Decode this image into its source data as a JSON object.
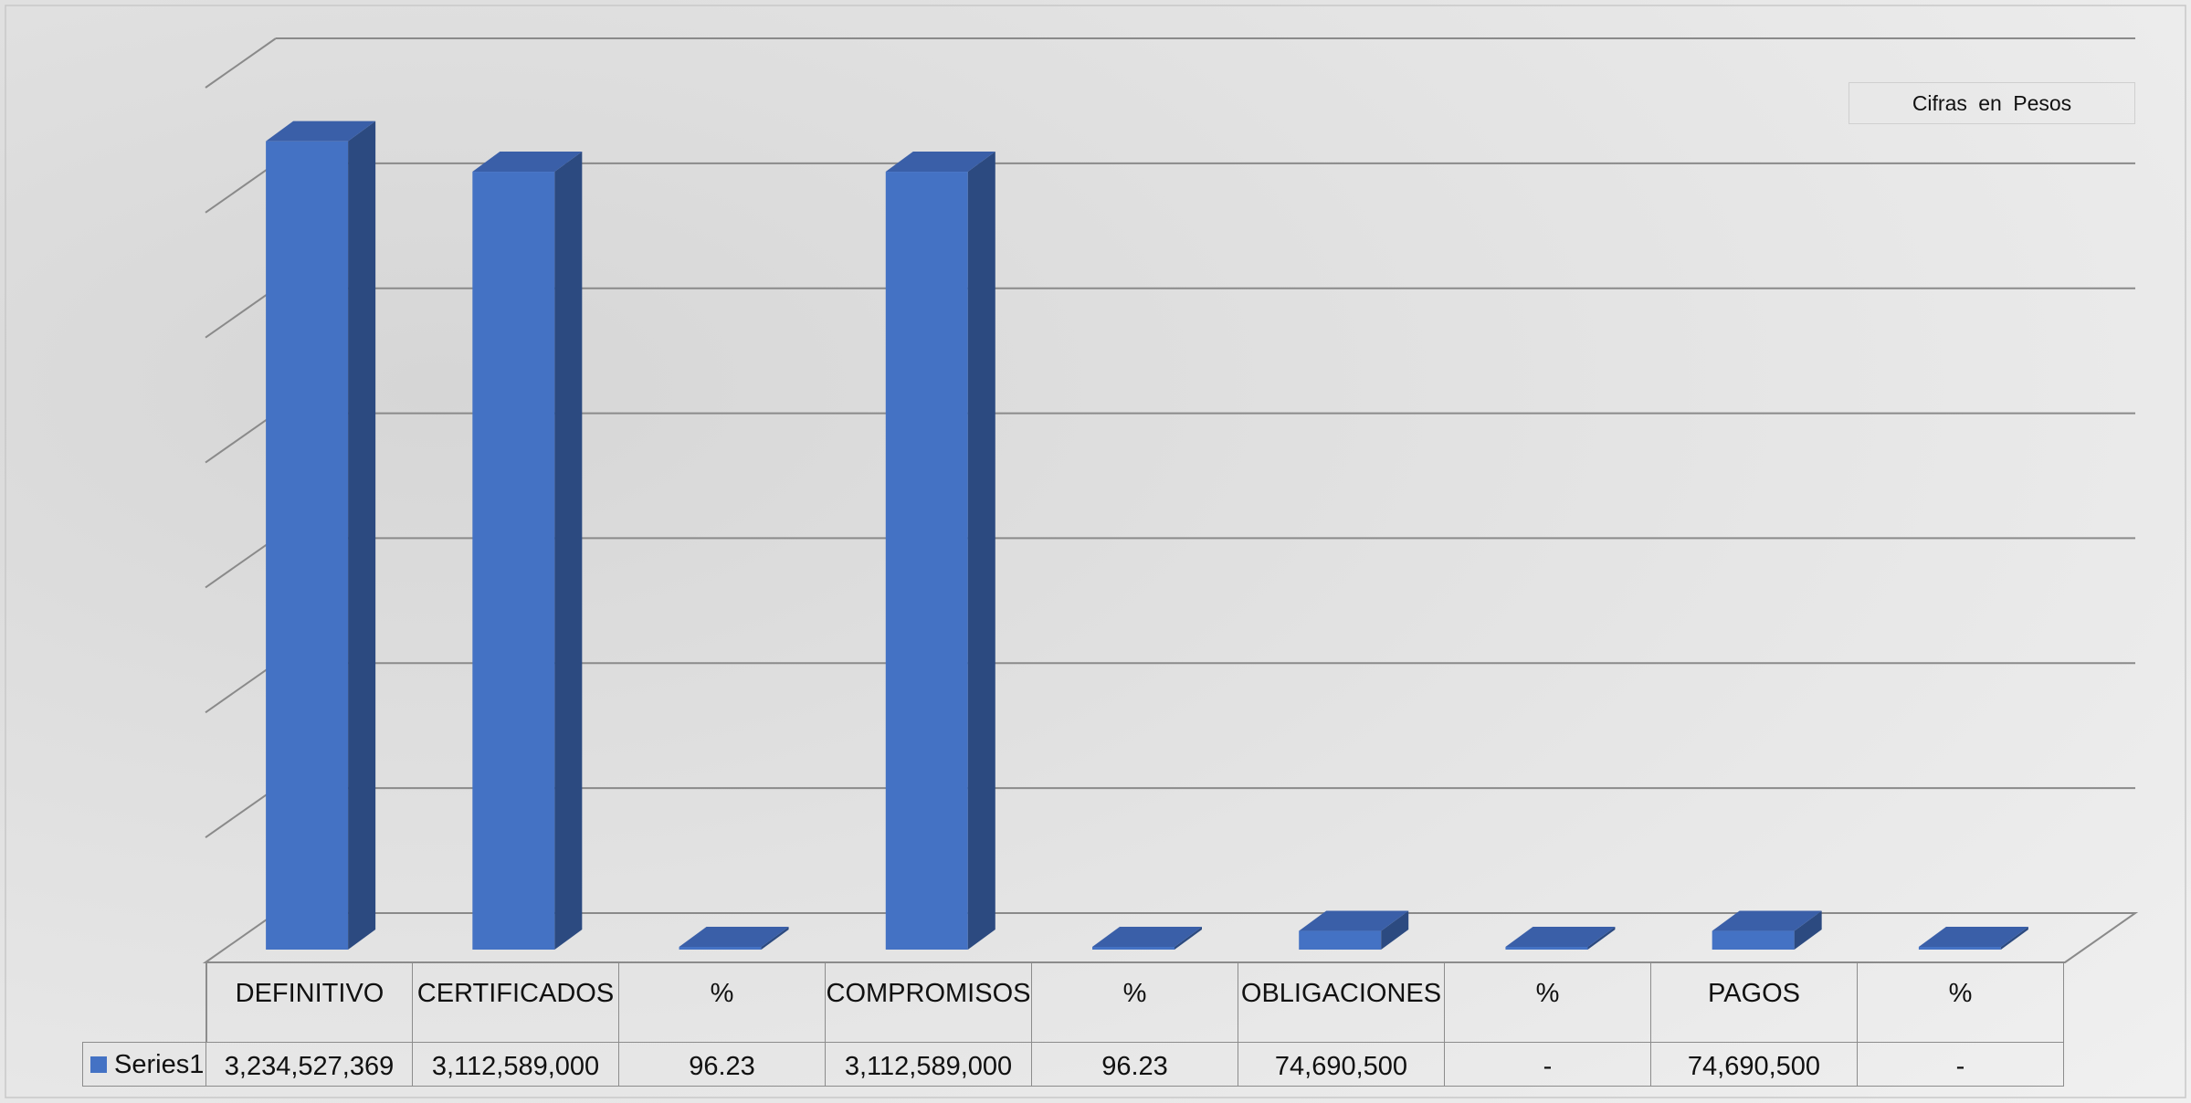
{
  "note": "Cifras en Pesos",
  "chart_data": {
    "type": "bar",
    "categories": [
      "DEFINITIVO",
      "CERTIFICADOS",
      "%",
      "COMPROMISOS",
      "%",
      "OBLIGACIONES",
      "%",
      "PAGOS",
      "%"
    ],
    "series": [
      {
        "name": "Series1",
        "values": [
          3234527369,
          3112589000,
          96.23,
          3112589000,
          96.23,
          74690500,
          0,
          74690500,
          0
        ],
        "labels": [
          "3,234,527,369",
          "3,112,589,000",
          "96.23",
          "3,112,589,000",
          "96.23",
          "74,690,500",
          "-",
          "74,690,500",
          "-"
        ]
      }
    ],
    "ylim": [
      0,
      3500000000
    ],
    "grid": true,
    "legend": "data-table",
    "colors": {
      "bar_front": "#4472c4",
      "bar_side": "#2c4a80",
      "bar_top": "#3a5fa8"
    }
  }
}
